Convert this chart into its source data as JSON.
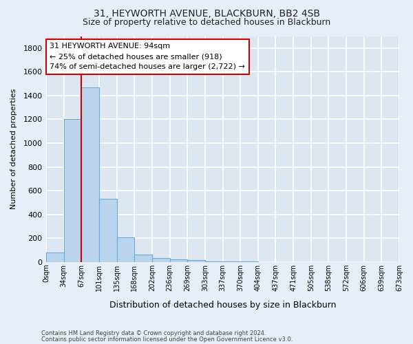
{
  "title1": "31, HEYWORTH AVENUE, BLACKBURN, BB2 4SB",
  "title2": "Size of property relative to detached houses in Blackburn",
  "xlabel": "Distribution of detached houses by size in Blackburn",
  "ylabel": "Number of detached properties",
  "bar_values": [
    80,
    1200,
    1470,
    530,
    205,
    65,
    35,
    25,
    15,
    5,
    5,
    2,
    1,
    0,
    0,
    0,
    0,
    0,
    0,
    0
  ],
  "categories": [
    "0sqm",
    "34sqm",
    "67sqm",
    "101sqm",
    "135sqm",
    "168sqm",
    "202sqm",
    "236sqm",
    "269sqm",
    "303sqm",
    "337sqm",
    "370sqm",
    "404sqm",
    "437sqm",
    "471sqm",
    "505sqm",
    "538sqm",
    "572sqm",
    "606sqm",
    "639sqm",
    "673sqm"
  ],
  "bar_color": "#bad4ee",
  "bar_edge_color": "#6aaad4",
  "vline_x": 2,
  "vline_color": "#cc0000",
  "ylim": [
    0,
    1900
  ],
  "yticks": [
    0,
    200,
    400,
    600,
    800,
    1000,
    1200,
    1400,
    1600,
    1800
  ],
  "annotation_title": "31 HEYWORTH AVENUE: 94sqm",
  "annotation_line1": "← 25% of detached houses are smaller (918)",
  "annotation_line2": "74% of semi-detached houses are larger (2,722) →",
  "annotation_box_color": "#ffffff",
  "annotation_box_edge": "#cc0000",
  "footer1": "Contains HM Land Registry data © Crown copyright and database right 2024.",
  "footer2": "Contains public sector information licensed under the Open Government Licence v3.0.",
  "fig_bg_color": "#e8eef7",
  "plot_bg_color": "#dde6f0",
  "grid_color": "#ffffff",
  "tick_color": "#333333"
}
